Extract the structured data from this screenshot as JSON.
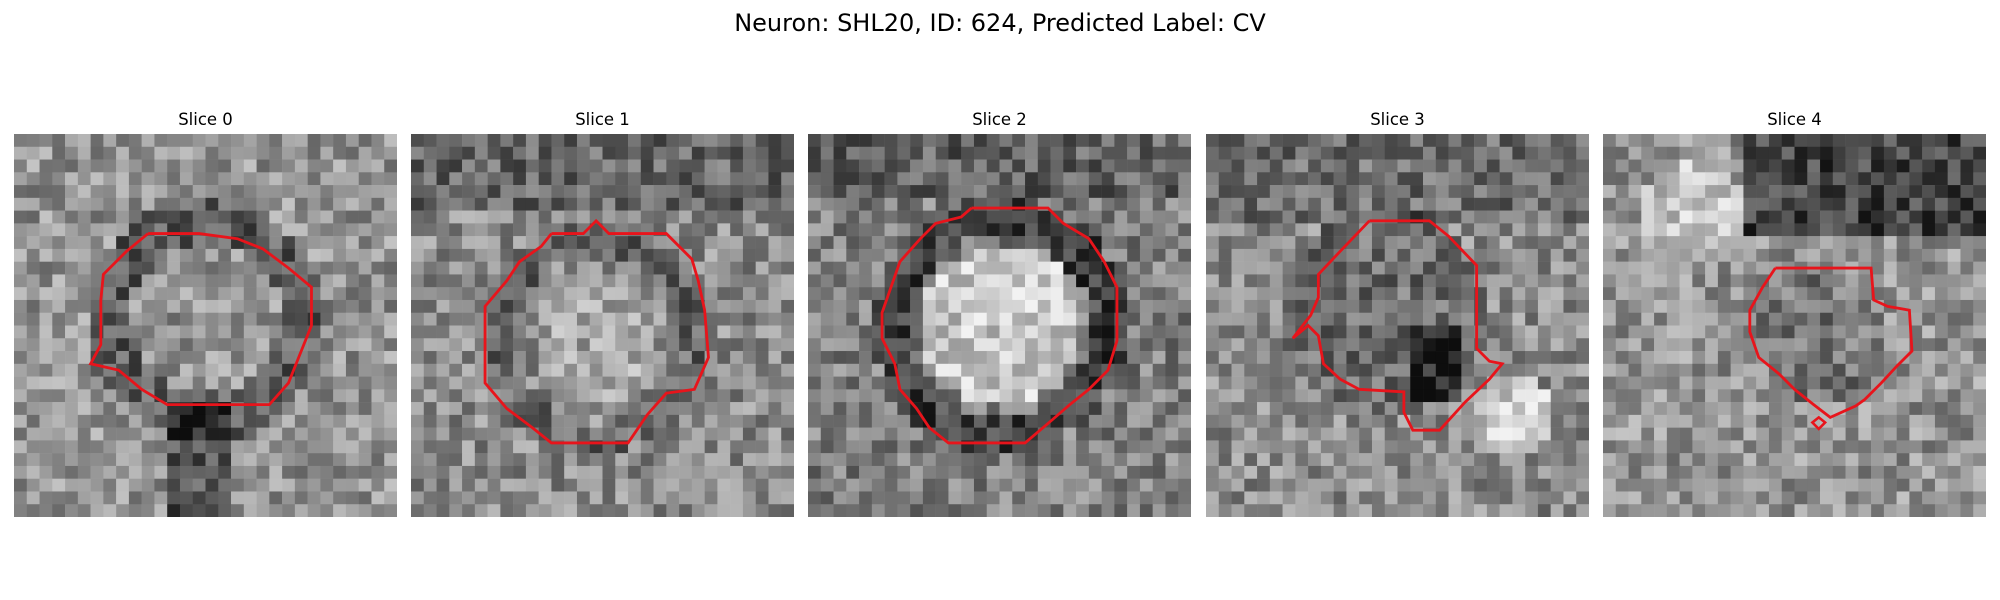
{
  "figure": {
    "title": "Neuron: SHL20, ID: 624, Predicted Label: CV"
  },
  "colors": {
    "contour": "#e8141b",
    "background": "#ffffff"
  },
  "panels": [
    {
      "label": "Slice 0"
    },
    {
      "label": "Slice 1"
    },
    {
      "label": "Slice 2"
    },
    {
      "label": "Slice 3"
    },
    {
      "label": "Slice 4"
    }
  ]
}
